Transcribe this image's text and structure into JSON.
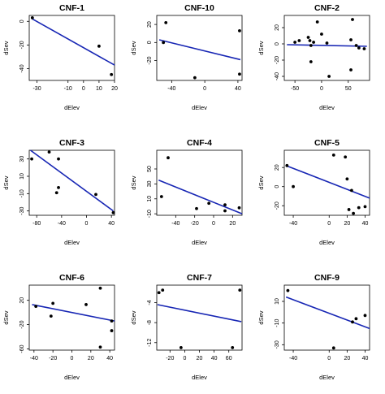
{
  "chart_data": [
    {
      "type": "scatter",
      "title": "CNF-1",
      "xlabel": "dElev",
      "ylabel": "dSev",
      "xlim": [
        -35,
        20
      ],
      "ylim": [
        -50,
        5
      ],
      "xticks": [
        -30,
        -10,
        0,
        10,
        20
      ],
      "yticks": [
        -40,
        -20,
        0
      ],
      "points": [
        {
          "x": -33,
          "y": 3
        },
        {
          "x": 10,
          "y": -21
        },
        {
          "x": 18,
          "y": -45
        }
      ],
      "fit": {
        "x": [
          -33,
          20
        ],
        "y": [
          2,
          -37
        ]
      }
    },
    {
      "type": "scatter",
      "title": "CNF-10",
      "xlabel": "dElev",
      "ylabel": "dSev",
      "xlim": [
        -58,
        45
      ],
      "ylim": [
        -42,
        30
      ],
      "xticks": [
        -40,
        0,
        40
      ],
      "yticks": [
        -20,
        0,
        20
      ],
      "points": [
        {
          "x": -50,
          "y": 0
        },
        {
          "x": -47,
          "y": 22
        },
        {
          "x": -12,
          "y": -39
        },
        {
          "x": 42,
          "y": 13
        },
        {
          "x": 42,
          "y": -35
        }
      ],
      "fit": {
        "x": [
          -55,
          43
        ],
        "y": [
          3,
          -19
        ]
      }
    },
    {
      "type": "scatter",
      "title": "CNF-2",
      "xlabel": "dElev",
      "ylabel": "dSev",
      "xlim": [
        -70,
        90
      ],
      "ylim": [
        -45,
        35
      ],
      "xticks": [
        -50,
        0,
        50
      ],
      "yticks": [
        -40,
        -20,
        0,
        20
      ],
      "points": [
        {
          "x": -50,
          "y": 2
        },
        {
          "x": -42,
          "y": 4
        },
        {
          "x": -25,
          "y": 8
        },
        {
          "x": -22,
          "y": 4
        },
        {
          "x": -20,
          "y": -2
        },
        {
          "x": -15,
          "y": 2
        },
        {
          "x": -20,
          "y": -22
        },
        {
          "x": -8,
          "y": 27
        },
        {
          "x": 0,
          "y": 12
        },
        {
          "x": 10,
          "y": 1
        },
        {
          "x": 14,
          "y": -40
        },
        {
          "x": 55,
          "y": 5
        },
        {
          "x": 58,
          "y": 30
        },
        {
          "x": 65,
          "y": -2
        },
        {
          "x": 70,
          "y": -5
        },
        {
          "x": 80,
          "y": -6
        },
        {
          "x": 55,
          "y": -32
        }
      ],
      "fit": {
        "x": [
          -65,
          85
        ],
        "y": [
          -1,
          -3
        ]
      }
    },
    {
      "type": "scatter",
      "title": "CNF-3",
      "xlabel": "dElev",
      "ylabel": "dSev",
      "xlim": [
        -92,
        45
      ],
      "ylim": [
        -35,
        40
      ],
      "xticks": [
        -80,
        -40,
        0,
        40
      ],
      "yticks": [
        -30,
        -10,
        10,
        30
      ],
      "points": [
        {
          "x": -88,
          "y": 30
        },
        {
          "x": -60,
          "y": 38
        },
        {
          "x": -45,
          "y": 30
        },
        {
          "x": -45,
          "y": -3
        },
        {
          "x": -48,
          "y": -9
        },
        {
          "x": 15,
          "y": -11
        },
        {
          "x": 43,
          "y": -32
        }
      ],
      "fit": {
        "x": [
          -90,
          43
        ],
        "y": [
          40,
          -30
        ]
      }
    },
    {
      "type": "scatter",
      "title": "CNF-4",
      "xlabel": "dElev",
      "ylabel": "dSev",
      "xlim": [
        -60,
        30
      ],
      "ylim": [
        -12,
        75
      ],
      "xticks": [
        -40,
        -20,
        0,
        20
      ],
      "yticks": [
        -10,
        10,
        30,
        50
      ],
      "points": [
        {
          "x": -55,
          "y": 13
        },
        {
          "x": -48,
          "y": 65
        },
        {
          "x": -18,
          "y": -3
        },
        {
          "x": -5,
          "y": 4
        },
        {
          "x": 12,
          "y": -6
        },
        {
          "x": 12,
          "y": 2
        },
        {
          "x": 27,
          "y": -2
        }
      ],
      "fit": {
        "x": [
          -58,
          30
        ],
        "y": [
          35,
          -10
        ]
      }
    },
    {
      "type": "scatter",
      "title": "CNF-5",
      "xlabel": "dElev",
      "ylabel": "dSev",
      "xlim": [
        -50,
        45
      ],
      "ylim": [
        -30,
        38
      ],
      "xticks": [
        -40,
        0,
        20,
        40
      ],
      "yticks": [
        -20,
        0,
        20
      ],
      "points": [
        {
          "x": -47,
          "y": 22
        },
        {
          "x": -40,
          "y": 0
        },
        {
          "x": 5,
          "y": 33
        },
        {
          "x": 18,
          "y": 31
        },
        {
          "x": 20,
          "y": 8
        },
        {
          "x": 25,
          "y": -4
        },
        {
          "x": 22,
          "y": -24
        },
        {
          "x": 27,
          "y": -28
        },
        {
          "x": 33,
          "y": -22
        },
        {
          "x": 40,
          "y": -21
        }
      ],
      "fit": {
        "x": [
          -48,
          45
        ],
        "y": [
          22,
          -12
        ]
      }
    },
    {
      "type": "scatter",
      "title": "CNF-6",
      "xlabel": "dElev",
      "ylabel": "dSev",
      "xlim": [
        -45,
        45
      ],
      "ylim": [
        -62,
        45
      ],
      "xticks": [
        -40,
        -20,
        0,
        20,
        40
      ],
      "yticks": [
        -60,
        -20,
        20
      ],
      "points": [
        {
          "x": -38,
          "y": 10
        },
        {
          "x": -22,
          "y": -6
        },
        {
          "x": -20,
          "y": 15
        },
        {
          "x": 15,
          "y": 13
        },
        {
          "x": 30,
          "y": 40
        },
        {
          "x": 30,
          "y": -57
        },
        {
          "x": 42,
          "y": -14
        },
        {
          "x": 42,
          "y": -30
        }
      ],
      "fit": {
        "x": [
          -42,
          45
        ],
        "y": [
          13,
          -14
        ]
      }
    },
    {
      "type": "scatter",
      "title": "CNF-7",
      "xlabel": "dElev",
      "ylabel": "dSev",
      "xlim": [
        -38,
        78
      ],
      "ylim": [
        -13.5,
        -0.5
      ],
      "xticks": [
        -20,
        0,
        20,
        40,
        60
      ],
      "yticks": [
        -12,
        -8,
        -4
      ],
      "points": [
        {
          "x": -35,
          "y": -2
        },
        {
          "x": -30,
          "y": -1.5
        },
        {
          "x": -5,
          "y": -13
        },
        {
          "x": 65,
          "y": -13
        },
        {
          "x": 75,
          "y": -1.5
        }
      ],
      "fit": {
        "x": [
          -37,
          77
        ],
        "y": [
          -4.4,
          -7.8
        ]
      }
    },
    {
      "type": "scatter",
      "title": "CNF-9",
      "xlabel": "dElev",
      "ylabel": "dSev",
      "xlim": [
        -50,
        45
      ],
      "ylim": [
        -35,
        25
      ],
      "xticks": [
        -40,
        0,
        20,
        40
      ],
      "yticks": [
        -30,
        -10,
        10
      ],
      "points": [
        {
          "x": -46,
          "y": 20
        },
        {
          "x": 5,
          "y": -33
        },
        {
          "x": 26,
          "y": -9
        },
        {
          "x": 30,
          "y": -6
        },
        {
          "x": 40,
          "y": -3
        }
      ],
      "fit": {
        "x": [
          -48,
          45
        ],
        "y": [
          14,
          -15
        ]
      }
    }
  ]
}
